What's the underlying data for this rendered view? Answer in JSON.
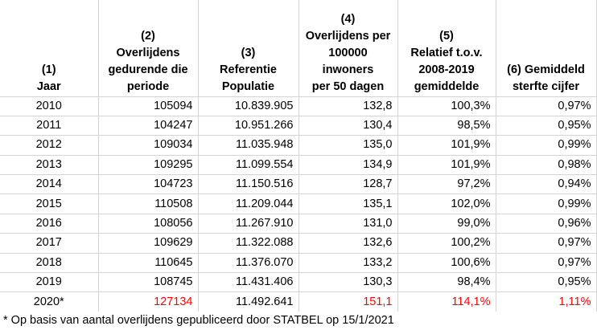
{
  "headers": [
    {
      "lines": [
        "(1)",
        "Jaar"
      ]
    },
    {
      "lines": [
        "(2)",
        "Overlijdens",
        "gedurende die",
        "periode"
      ]
    },
    {
      "lines": [
        "(3)",
        "Referentie",
        "Populatie"
      ]
    },
    {
      "lines": [
        "(4)",
        "Overlijdens per",
        "100000",
        "inwoners",
        "per 50 dagen"
      ]
    },
    {
      "lines": [
        "(5)",
        "Relatief t.o.v.",
        "2008-2019",
        "gemiddelde"
      ]
    },
    {
      "lines": [
        "(6) Gemiddeld",
        "sterfte cijfer"
      ]
    }
  ],
  "rows": [
    {
      "year": "2010",
      "deaths": "105094",
      "population": "10.839.905",
      "per100k": "132,8",
      "relative": "100,3%",
      "rate": "0,97%"
    },
    {
      "year": "2011",
      "deaths": "104247",
      "population": "10.951.266",
      "per100k": "130,4",
      "relative": "98,5%",
      "rate": "0,95%"
    },
    {
      "year": "2012",
      "deaths": "109034",
      "population": "11.035.948",
      "per100k": "135,0",
      "relative": "101,9%",
      "rate": "0,99%"
    },
    {
      "year": "2013",
      "deaths": "109295",
      "population": "11.099.554",
      "per100k": "134,9",
      "relative": "101,9%",
      "rate": "0,98%"
    },
    {
      "year": "2014",
      "deaths": "104723",
      "population": "11.150.516",
      "per100k": "128,7",
      "relative": "97,2%",
      "rate": "0,94%"
    },
    {
      "year": "2015",
      "deaths": "110508",
      "population": "11.209.044",
      "per100k": "135,1",
      "relative": "102,0%",
      "rate": "0,99%"
    },
    {
      "year": "2016",
      "deaths": "108056",
      "population": "11.267.910",
      "per100k": "131,0",
      "relative": "99,0%",
      "rate": "0,96%"
    },
    {
      "year": "2017",
      "deaths": "109629",
      "population": "11.322.088",
      "per100k": "132,6",
      "relative": "100,2%",
      "rate": "0,97%"
    },
    {
      "year": "2018",
      "deaths": "110645",
      "population": "11.376.070",
      "per100k": "133,2",
      "relative": "100,6%",
      "rate": "0,97%"
    },
    {
      "year": "2019",
      "deaths": "108745",
      "population": "11.431.406",
      "per100k": "130,3",
      "relative": "98,4%",
      "rate": "0,95%"
    },
    {
      "year": "2020*",
      "deaths": "127134",
      "population": "11.492.641",
      "per100k": "151,1",
      "relative": "114,1%",
      "rate": "1,11%",
      "highlight": true
    }
  ],
  "footnote": "* Op basis van aantal overlijdens gepubliceerd door STATBEL op 15/1/2021",
  "colors": {
    "highlight": "#ff0000",
    "gridline": "#d4d4d4"
  }
}
